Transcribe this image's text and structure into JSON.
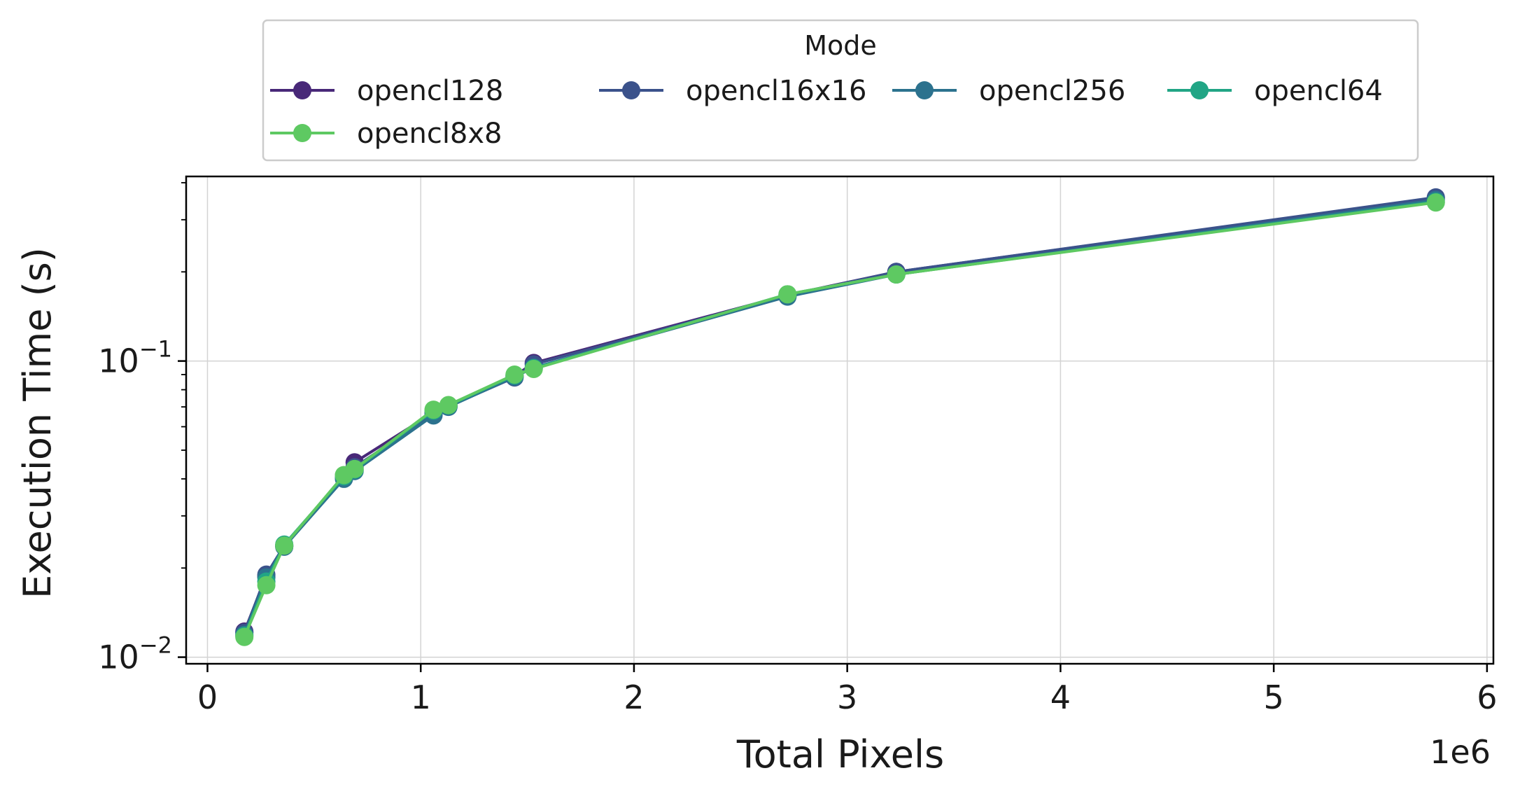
{
  "chart_data": {
    "type": "line",
    "xlabel": "Total Pixels",
    "ylabel": "Execution Time (s)",
    "x_offset_text": "1e6",
    "x_scale": "linear",
    "y_scale": "log",
    "xlim": [
      -0.1,
      6.03
    ],
    "ylim": [
      0.0095,
      0.42
    ],
    "x_ticks": [
      0,
      1,
      2,
      3,
      4,
      5,
      6
    ],
    "x_tick_labels": [
      "0",
      "1",
      "2",
      "3",
      "4",
      "5",
      "6"
    ],
    "y_ticks": [
      0.01,
      0.1
    ],
    "y_tick_label_base": "10",
    "y_tick_label_exponents": [
      "−2",
      "−1"
    ],
    "grid": true,
    "legend": {
      "title": "Mode",
      "placement": "top-center, outside plot"
    },
    "x": [
      0.173,
      0.276,
      0.36,
      0.64,
      0.69,
      1.06,
      1.13,
      1.44,
      1.53,
      2.72,
      3.23,
      5.76
    ],
    "series": [
      {
        "name": "opencl128",
        "color": "#482878",
        "values": [
          0.0122,
          0.0188,
          0.0237,
          0.041,
          0.0455,
          0.067,
          0.0705,
          0.089,
          0.0985,
          0.167,
          0.2,
          0.355
        ]
      },
      {
        "name": "opencl16x16",
        "color": "#3b528b",
        "values": [
          0.0121,
          0.019,
          0.0238,
          0.0405,
          0.0438,
          0.066,
          0.0703,
          0.088,
          0.0975,
          0.166,
          0.2,
          0.357
        ]
      },
      {
        "name": "opencl256",
        "color": "#2c728e",
        "values": [
          0.0119,
          0.0186,
          0.0236,
          0.04,
          0.0425,
          0.0655,
          0.07,
          0.0885,
          0.095,
          0.165,
          0.196,
          0.35
        ]
      },
      {
        "name": "opencl64",
        "color": "#21a585",
        "values": [
          0.0118,
          0.018,
          0.024,
          0.0408,
          0.043,
          0.068,
          0.0708,
          0.0895,
          0.0945,
          0.168,
          0.196,
          0.345
        ]
      },
      {
        "name": "opencl8x8",
        "color": "#5ec962",
        "values": [
          0.0117,
          0.0175,
          0.0238,
          0.0412,
          0.0432,
          0.0685,
          0.071,
          0.09,
          0.094,
          0.168,
          0.196,
          0.343
        ]
      }
    ]
  }
}
